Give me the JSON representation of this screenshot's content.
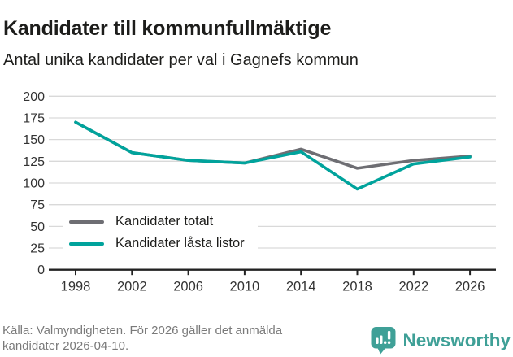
{
  "header": {
    "title": "Kandidater till kommunfullmäktige",
    "subtitle": "Antal unika kandidater per val i Gagnefs kommun"
  },
  "chart_data": {
    "type": "line",
    "title": "Kandidater till kommunfullmäktige",
    "subtitle": "Antal unika kandidater per val i Gagnefs kommun",
    "categories": [
      "1998",
      "2002",
      "2006",
      "2010",
      "2014",
      "2018",
      "2022",
      "2026"
    ],
    "series": [
      {
        "id": "kandidater-totalt",
        "name": "Kandidater totalt",
        "color": "#6e6e73",
        "values": [
          170,
          135,
          126,
          123,
          139,
          117,
          126,
          131
        ]
      },
      {
        "id": "kandidater-lasta-listor",
        "name": "Kandidater låsta listor",
        "color": "#00a39c",
        "values": [
          170,
          135,
          126,
          123,
          136,
          93,
          122,
          130
        ]
      }
    ],
    "xlabel": "",
    "ylabel": "",
    "ylim": [
      0,
      200
    ],
    "yticks": [
      0,
      25,
      50,
      75,
      100,
      125,
      150,
      175,
      200
    ],
    "grid": "horizontal",
    "legend_position": "inside-lower-left",
    "colors": {
      "grid": "#d9d9d9",
      "axis": "#222222",
      "axis_text": "#333333"
    }
  },
  "footer": {
    "source": "Källa: Valmyndigheten. För 2026 gäller det anmälda kandidater 2026-04-10.",
    "logo_text": "Newsworthy",
    "logo_color": "#3fa097"
  }
}
